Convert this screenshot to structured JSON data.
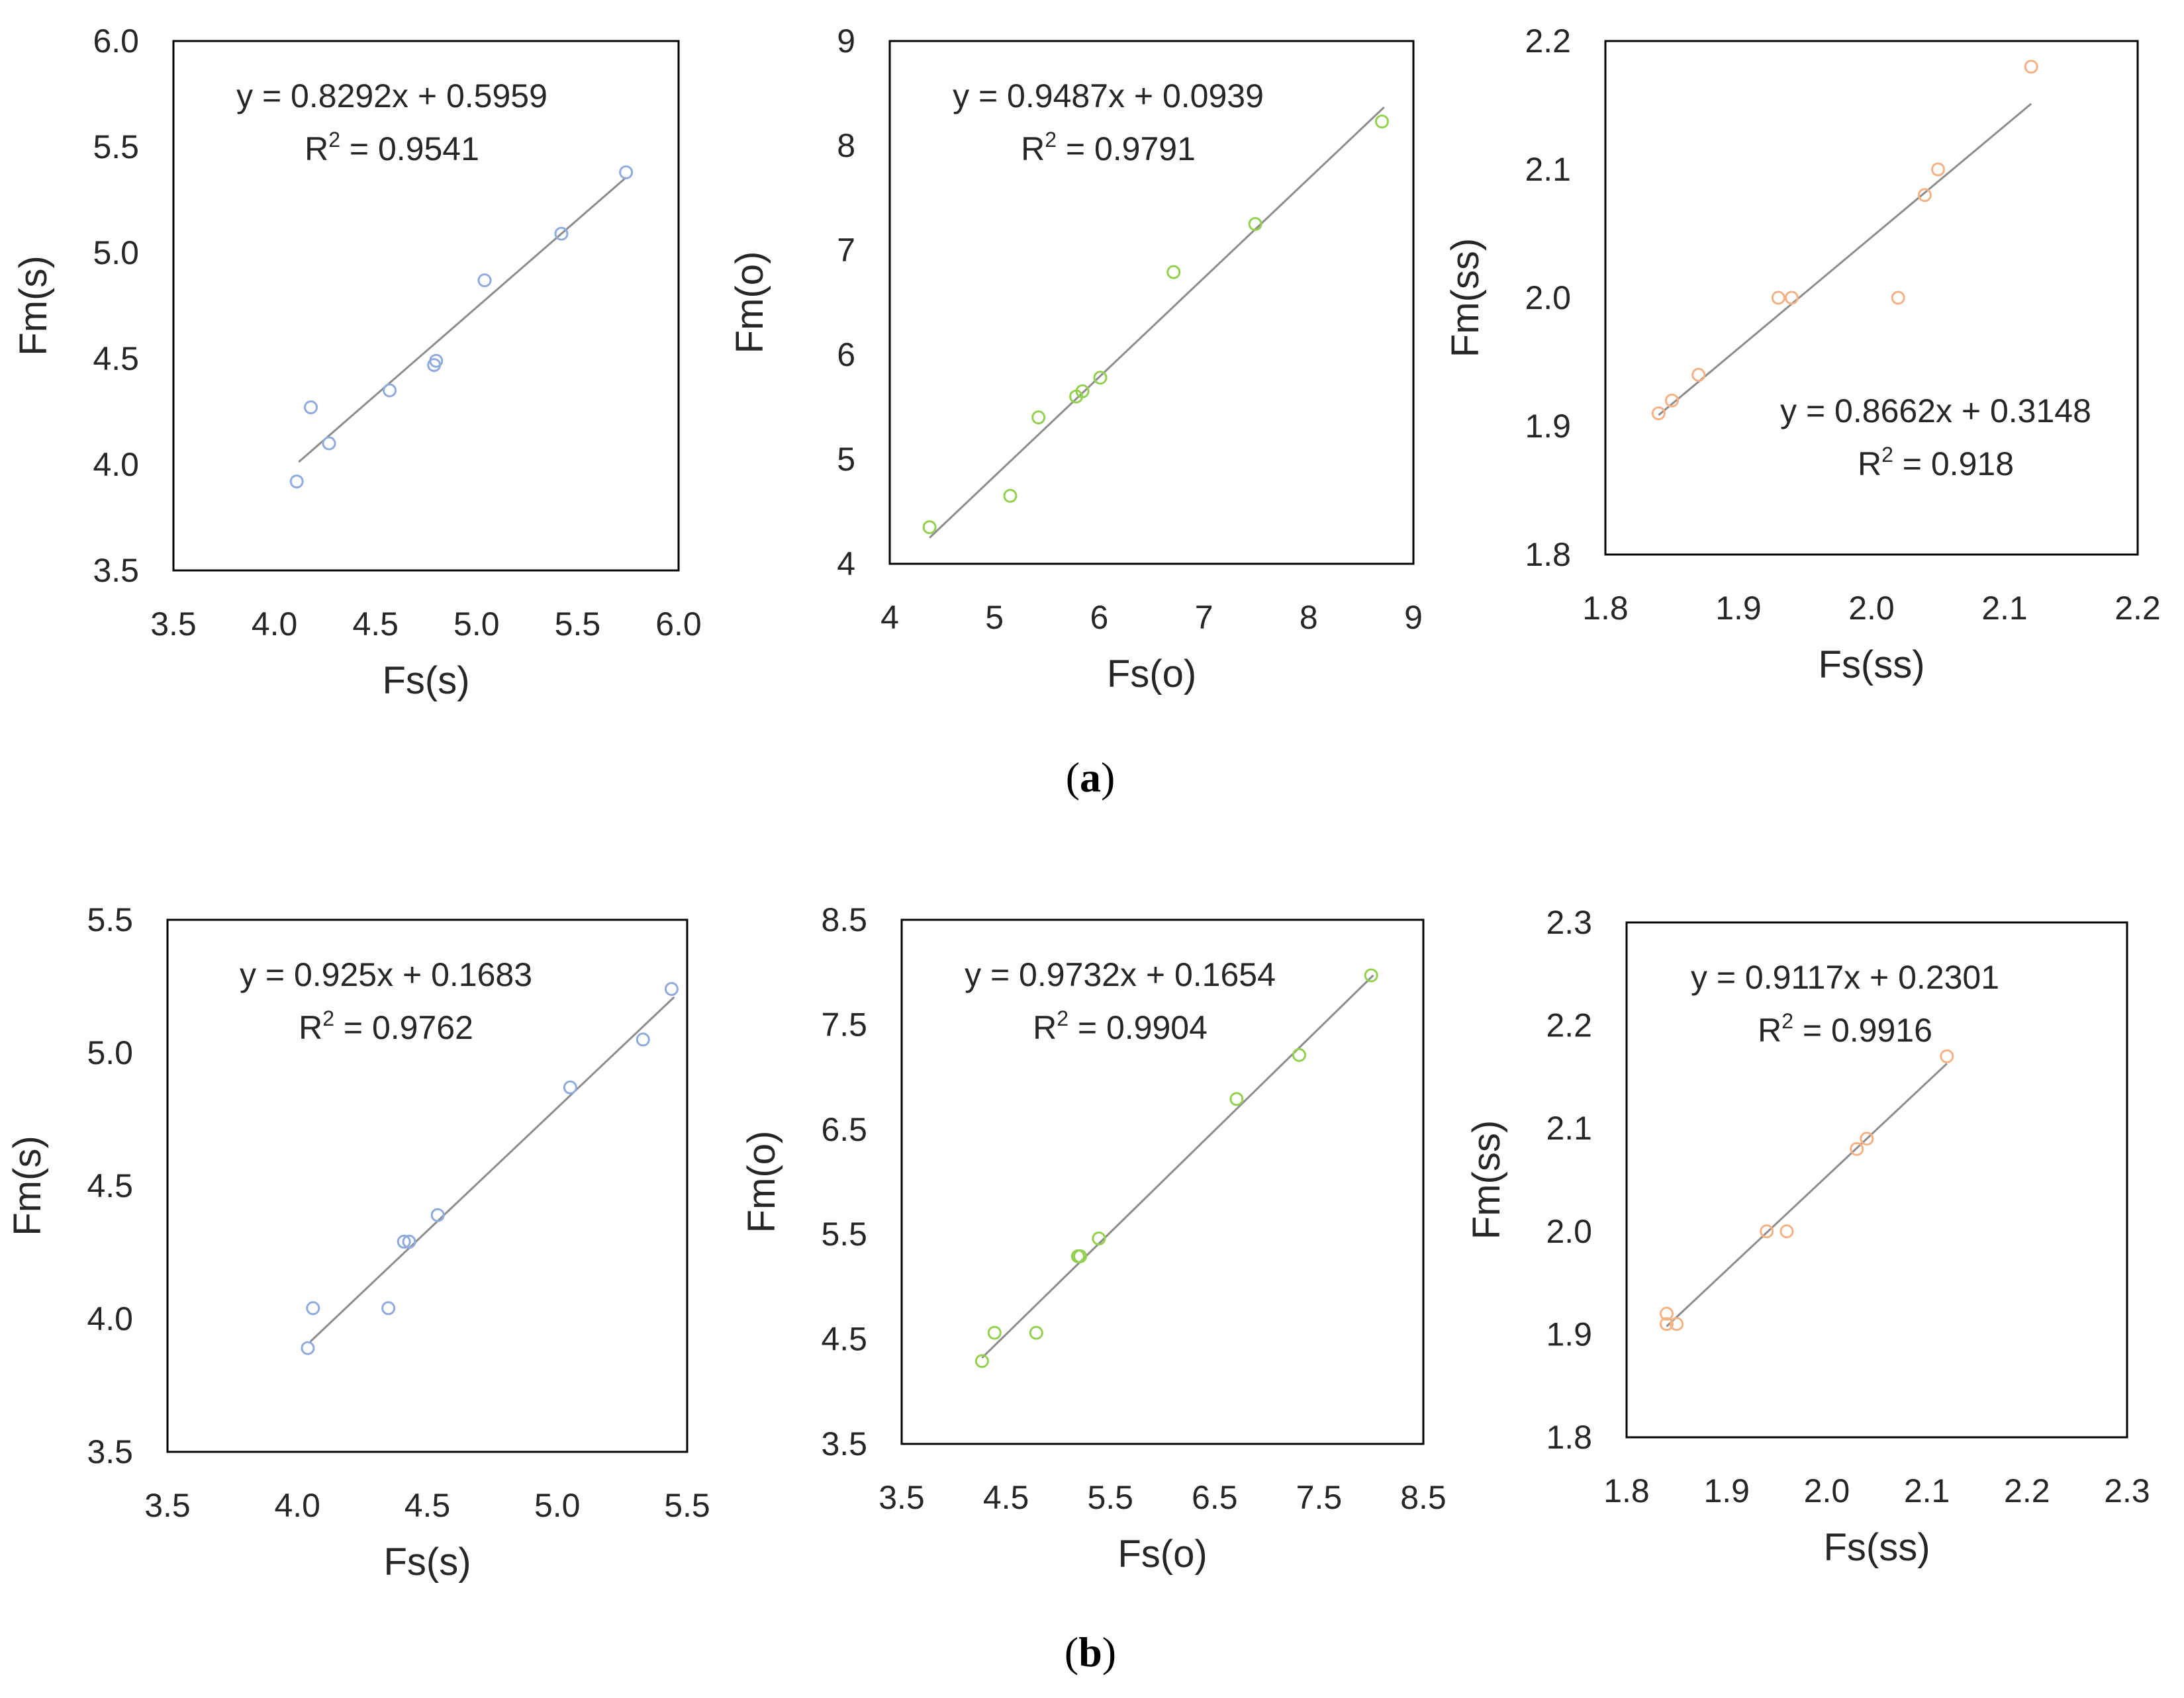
{
  "captions": [
    {
      "left": "(",
      "letter": "a",
      "right": ")"
    },
    {
      "left": "(",
      "letter": "b",
      "right": ")"
    }
  ],
  "chart_data": [
    {
      "type": "scatter",
      "panel": "a",
      "xlabel": "Fs(s)",
      "ylabel": "Fm(s)",
      "xlim": [
        3.5,
        6.0
      ],
      "ylim": [
        3.5,
        6.0
      ],
      "xstep": 0.5,
      "ystep": 0.5,
      "decimals": 1,
      "equation": "y = 0.8292x + 0.5959",
      "r2_label": "R",
      "r2_sup": "2",
      "r2_value": " = 0.9541",
      "slope": 0.8292,
      "intercept": 0.5959,
      "fit_range": [
        4.12,
        5.74
      ],
      "equation_pos": "top-left",
      "color": "#8FAADC",
      "x": [
        4.11,
        4.18,
        4.27,
        4.57,
        4.79,
        4.8,
        5.04,
        5.42,
        5.74
      ],
      "y": [
        3.92,
        4.27,
        4.1,
        4.35,
        4.47,
        4.49,
        4.87,
        5.09,
        5.38
      ]
    },
    {
      "type": "scatter",
      "panel": "a",
      "xlabel": "Fs(o)",
      "ylabel": "Fm(o)",
      "xlim": [
        4,
        9
      ],
      "ylim": [
        4,
        9
      ],
      "xstep": 1,
      "ystep": 1,
      "decimals": 0,
      "equation": "y = 0.9487x + 0.0939",
      "r2_label": "R",
      "r2_sup": "2",
      "r2_value": " = 0.9791",
      "slope": 0.9487,
      "intercept": 0.0939,
      "fit_range": [
        4.38,
        8.72
      ],
      "equation_pos": "top-left",
      "color": "#92D050",
      "x": [
        4.38,
        5.15,
        5.42,
        5.78,
        5.84,
        6.01,
        6.71,
        7.49,
        8.7
      ],
      "y": [
        4.35,
        4.65,
        5.4,
        5.6,
        5.65,
        5.78,
        6.79,
        7.25,
        8.23
      ]
    },
    {
      "type": "scatter",
      "panel": "a",
      "xlabel": "Fs(ss)",
      "ylabel": "Fm(ss)",
      "xlim": [
        1.8,
        2.2
      ],
      "ylim": [
        1.8,
        2.2
      ],
      "xstep": 0.1,
      "ystep": 0.1,
      "decimals": 1,
      "equation": "y = 0.8662x + 0.3148",
      "r2_label": "R",
      "r2_sup": "2",
      "r2_value": " = 0.918",
      "slope": 0.8662,
      "intercept": 0.3148,
      "fit_range": [
        1.84,
        2.12
      ],
      "equation_pos": "bottom-right",
      "color": "#F4B183",
      "x": [
        1.84,
        1.85,
        1.87,
        1.93,
        1.94,
        2.02,
        2.04,
        2.05,
        2.12
      ],
      "y": [
        1.91,
        1.92,
        1.94,
        2.0,
        2.0,
        2.0,
        2.08,
        2.1,
        2.18
      ]
    },
    {
      "type": "scatter",
      "panel": "b",
      "xlabel": "Fs(s)",
      "ylabel": "Fm(s)",
      "xlim": [
        3.5,
        5.5
      ],
      "ylim": [
        3.5,
        5.5
      ],
      "xstep": 0.5,
      "ystep": 0.5,
      "decimals": 1,
      "equation": "y = 0.925x + 0.1683",
      "r2_label": "R",
      "r2_sup": "2",
      "r2_value": " = 0.9762",
      "slope": 0.925,
      "intercept": 0.1683,
      "fit_range": [
        4.05,
        5.45
      ],
      "equation_pos": "top-left",
      "color": "#8FAADC",
      "x": [
        4.04,
        4.06,
        4.35,
        4.41,
        4.43,
        4.54,
        5.05,
        5.33,
        5.44
      ],
      "y": [
        3.89,
        4.04,
        4.04,
        4.29,
        4.29,
        4.39,
        4.87,
        5.05,
        5.24
      ]
    },
    {
      "type": "scatter",
      "panel": "b",
      "xlabel": "Fs(o)",
      "ylabel": "Fm(o)",
      "xlim": [
        3.5,
        8.5
      ],
      "ylim": [
        3.5,
        8.5
      ],
      "xstep": 1.0,
      "ystep": 1.0,
      "decimals": 1,
      "equation": "y = 0.9732x + 0.1654",
      "r2_label": "R",
      "r2_sup": "2",
      "r2_value": " = 0.9904",
      "slope": 0.9732,
      "intercept": 0.1654,
      "fit_range": [
        4.27,
        8.02
      ],
      "equation_pos": "top-left",
      "color": "#92D050",
      "x": [
        4.27,
        4.39,
        4.79,
        5.19,
        5.21,
        5.39,
        6.71,
        7.31,
        8.0
      ],
      "y": [
        4.29,
        4.56,
        4.56,
        5.29,
        5.29,
        5.46,
        6.79,
        7.21,
        7.97
      ]
    },
    {
      "type": "scatter",
      "panel": "b",
      "xlabel": "Fs(ss)",
      "ylabel": "Fm(ss)",
      "xlim": [
        1.8,
        2.3
      ],
      "ylim": [
        1.8,
        2.3
      ],
      "xstep": 0.1,
      "ystep": 0.1,
      "decimals": 1,
      "equation": "y = 0.9117x + 0.2301",
      "r2_label": "R",
      "r2_sup": "2",
      "r2_value": " = 0.9916",
      "slope": 0.9117,
      "intercept": 0.2301,
      "fit_range": [
        1.84,
        2.12
      ],
      "equation_pos": "top-left",
      "color": "#F4B183",
      "x": [
        1.84,
        1.84,
        1.85,
        1.94,
        1.96,
        2.03,
        2.04,
        2.12
      ],
      "y": [
        1.92,
        1.91,
        1.91,
        2.0,
        2.0,
        2.08,
        2.09,
        2.17
      ]
    }
  ]
}
